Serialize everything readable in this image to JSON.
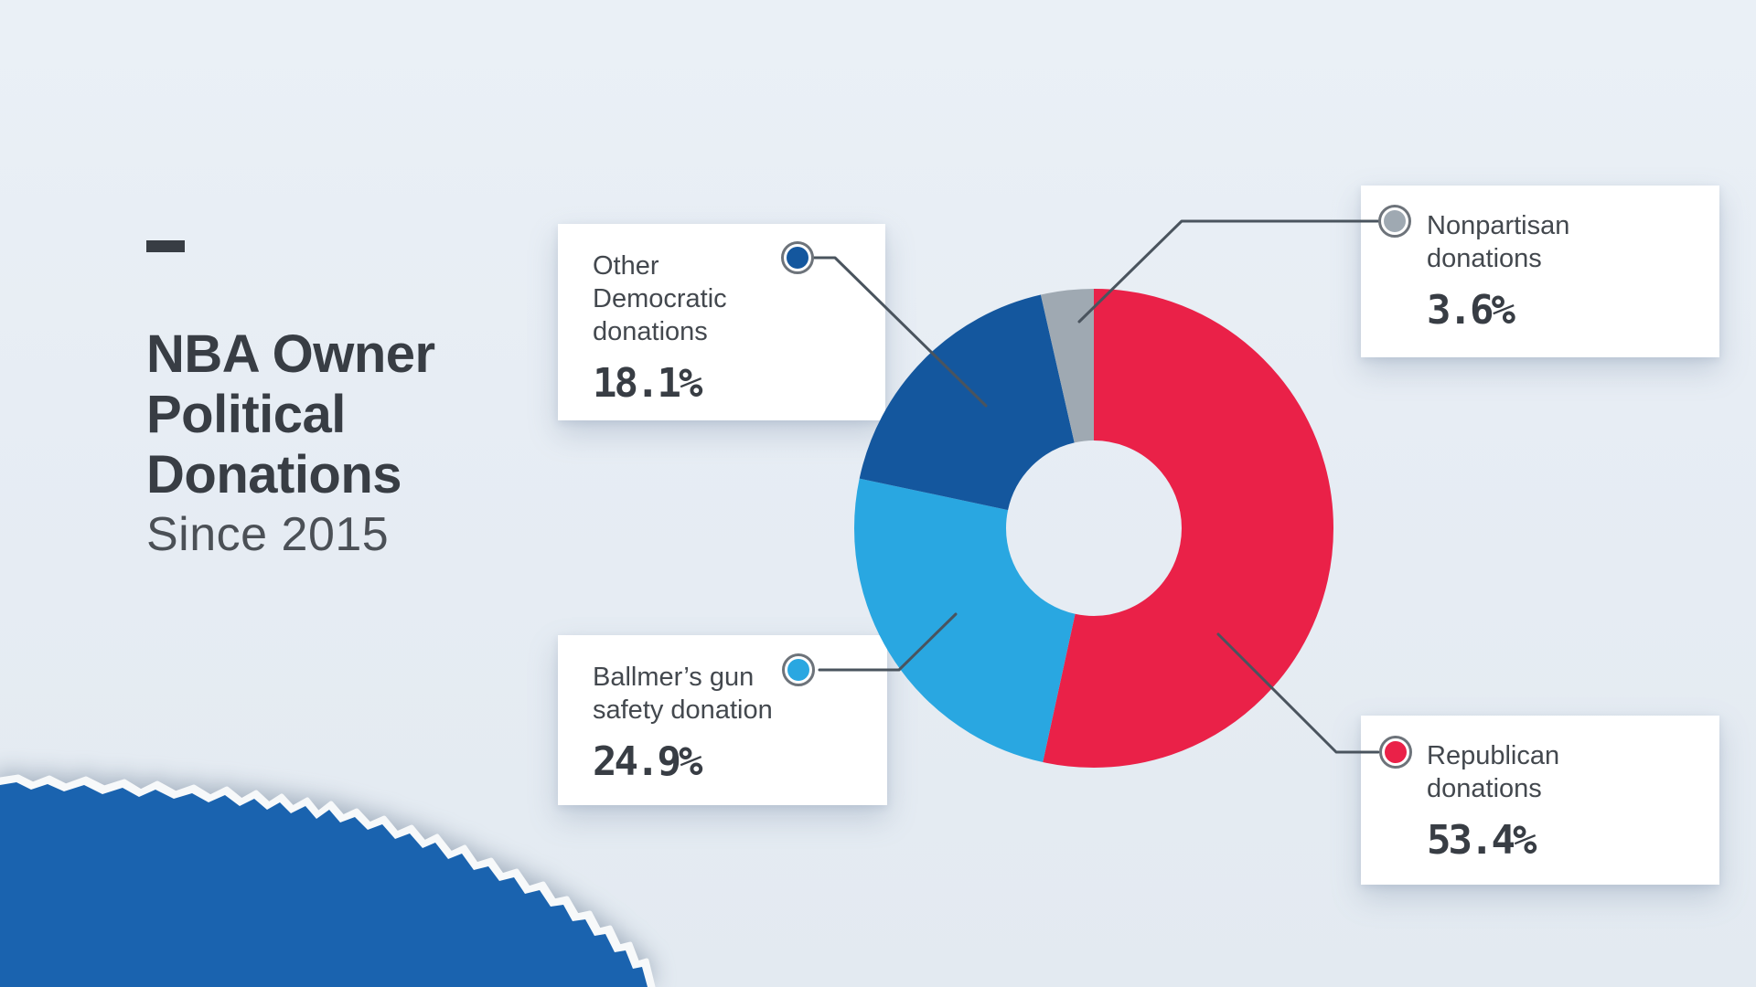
{
  "header": {
    "title_line1": "NBA Owner",
    "title_line2": "Political",
    "title_line3": "Donations",
    "subtitle": "Since 2015"
  },
  "chart_data": {
    "type": "pie",
    "title": "NBA Owner Political Donations Since 2015",
    "donut": true,
    "start_angle_deg": 0,
    "direction": "clockwise",
    "categories": [
      "Republican donations",
      "Ballmer's gun safety donation",
      "Other Democratic donations",
      "Nonpartisan donations"
    ],
    "values": [
      53.4,
      24.9,
      18.1,
      3.6
    ],
    "unit": "%",
    "colors": [
      "#ea2148",
      "#29a7e1",
      "#14579e",
      "#9fa9b2"
    ],
    "legend_position": "callout-cards",
    "hole_color": "#e7edf4"
  },
  "callouts": [
    {
      "id": "other-democratic",
      "line1": "Other",
      "line2": "Democratic",
      "line3": "donations",
      "value": "18.1%",
      "color": "#14579e"
    },
    {
      "id": "nonpartisan",
      "line1": "Nonpartisan",
      "line2": "donations",
      "value": "3.6%",
      "color": "#9fa9b2"
    },
    {
      "id": "ballmer",
      "line1": "Ballmer’s gun",
      "line2": "safety donation",
      "value": "24.9%",
      "color": "#29a7e1"
    },
    {
      "id": "republican",
      "line1": "Republican",
      "line2": "donations",
      "value": "53.4%",
      "color": "#ea2148"
    }
  ],
  "decor": {
    "torn_paper_color": "#1a63af",
    "connector_color": "#4a545e",
    "background_color": "#e7edf4"
  }
}
